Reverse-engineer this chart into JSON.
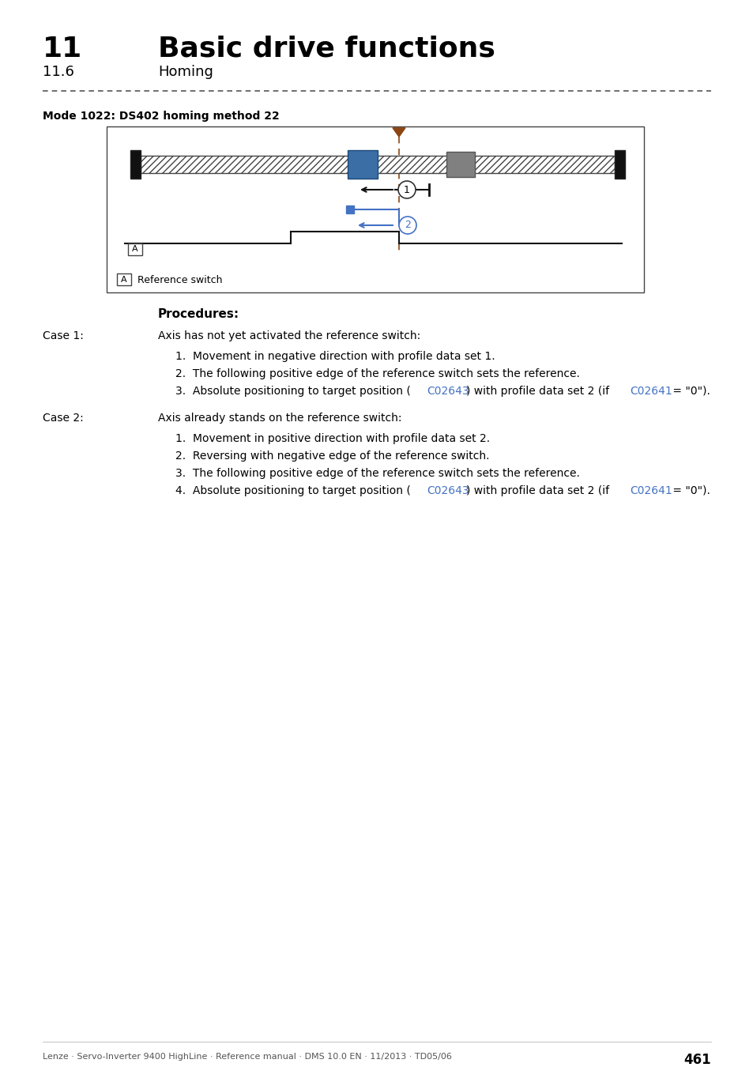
{
  "title_num": "11",
  "title_text": "Basic drive functions",
  "subtitle_num": "11.6",
  "subtitle_text": "Homing",
  "mode_label": "Mode 1022: DS402 homing method 22",
  "procedures_label": "Procedures:",
  "case1_header": "Case 1:",
  "case1_intro": "Axis has not yet activated the reference switch:",
  "case1_item1": "Movement in negative direction with profile data set 1.",
  "case1_item2": "The following positive edge of the reference switch sets the reference.",
  "case1_item3_pre": "Absolute positioning to target position (",
  "case1_item3_link1": "C02643",
  "case1_item3_mid": ") with profile data set 2 (if ",
  "case1_item3_link2": "C02641",
  "case1_item3_suf": " = \"0\").",
  "case2_header": "Case 2:",
  "case2_intro": "Axis already stands on the reference switch:",
  "case2_item1": "Movement in positive direction with profile data set 2.",
  "case2_item2": "Reversing with negative edge of the reference switch.",
  "case2_item3": "The following positive edge of the reference switch sets the reference.",
  "case2_item4_pre": "Absolute positioning to target position (",
  "case2_item4_link1": "C02643",
  "case2_item4_mid": ") with profile data set 2 (if ",
  "case2_item4_link2": "C02641",
  "case2_item4_suf": " = \"0\").",
  "footer_text": "Lenze · Servo-Inverter 9400 HighLine · Reference manual · DMS 10.0 EN · 11/2013 · TD05/06",
  "footer_page": "461",
  "bg_color": "#ffffff",
  "text_color": "#000000",
  "link_color": "#4472c4",
  "blue_block_color": "#3b6ea5",
  "gray_block_color": "#808080",
  "arrow2_color": "#4472c4",
  "ref_dashed_color": "#8b4513",
  "triangle_color": "#8b4513"
}
